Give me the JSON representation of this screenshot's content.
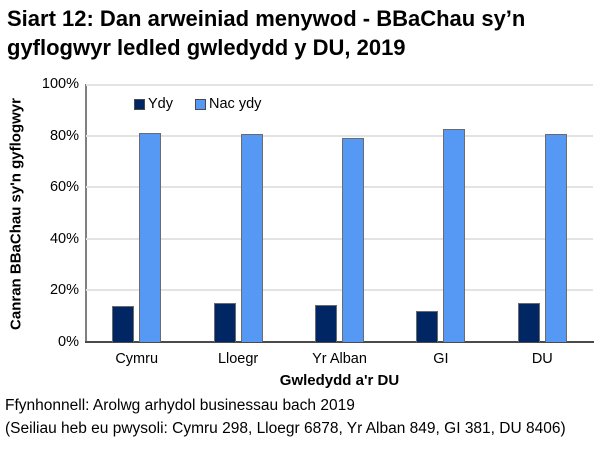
{
  "title": "Siart 12: Dan arweiniad menywod - BBaChau sy’n gyflogwyr ledled gwledydd y DU, 2019",
  "chart_data": {
    "type": "bar",
    "categories": [
      "Cymru",
      "Lloegr",
      "Yr Alban",
      "GI",
      "DU"
    ],
    "series": [
      {
        "name": "Ydy",
        "color": "#002664",
        "values": [
          14,
          15,
          14.5,
          12,
          15
        ]
      },
      {
        "name": "Nac ydy",
        "color": "#5599F5",
        "values": [
          81,
          80.5,
          79,
          82.5,
          80.5
        ]
      }
    ],
    "xlabel": "Gwledydd a'r DU",
    "ylabel": "Canran BBaChau sy'n gyflogwyr",
    "ylim": [
      0,
      100
    ],
    "yticks": [
      "0%",
      "20%",
      "40%",
      "60%",
      "80%",
      "100%"
    ],
    "legend_position": "top-left-inside",
    "grid": "horizontal",
    "gridline_color": "#e3e3e3",
    "bar_border_color": "#6b6b6b"
  },
  "footer": {
    "source": "Ffynhonnell: Arolwg arhydol businessau bach 2019",
    "bases": "(Seiliau heb eu pwysoli: Cymru 298, Lloegr 6878, Yr Alban 849, GI 381, DU 8406)"
  }
}
